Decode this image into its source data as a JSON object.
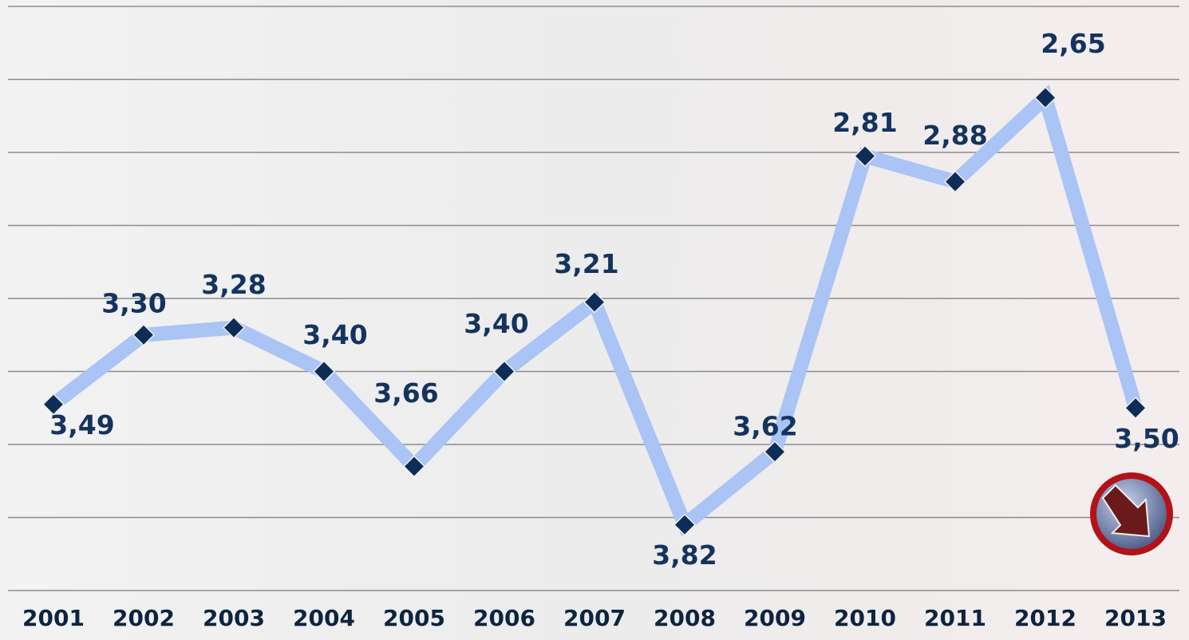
{
  "chart_data": {
    "type": "line",
    "categories": [
      "2001",
      "2002",
      "2003",
      "2004",
      "2005",
      "2006",
      "2007",
      "2008",
      "2009",
      "2010",
      "2011",
      "2012",
      "2013"
    ],
    "series": [
      {
        "color": "#a9c4f5",
        "values": [
          3.49,
          3.3,
          3.28,
          3.4,
          3.66,
          3.4,
          3.21,
          3.82,
          3.62,
          2.81,
          2.88,
          2.65,
          3.5
        ],
        "value_labels": [
          "3,49",
          "3,30",
          "3,28",
          "3,40",
          "3,66",
          "3,40",
          "3,21",
          "3,82",
          "3,62",
          "2,81",
          "2,88",
          "2,65",
          "3,50"
        ]
      }
    ],
    "marker_color": "#0d2d57",
    "ylim": [
      4.0,
      2.4
    ],
    "yticks": [
      2.4,
      2.6,
      2.8,
      3.0,
      3.2,
      3.4,
      3.6,
      3.8,
      4.0
    ],
    "grid": true
  }
}
